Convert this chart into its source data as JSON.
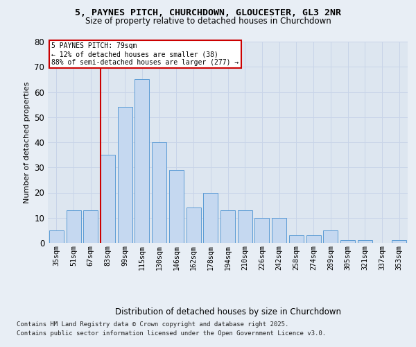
{
  "title_line1": "5, PAYNES PITCH, CHURCHDOWN, GLOUCESTER, GL3 2NR",
  "title_line2": "Size of property relative to detached houses in Churchdown",
  "xlabel": "Distribution of detached houses by size in Churchdown",
  "ylabel": "Number of detached properties",
  "categories": [
    "35sqm",
    "51sqm",
    "67sqm",
    "83sqm",
    "99sqm",
    "115sqm",
    "130sqm",
    "146sqm",
    "162sqm",
    "178sqm",
    "194sqm",
    "210sqm",
    "226sqm",
    "242sqm",
    "258sqm",
    "274sqm",
    "289sqm",
    "305sqm",
    "321sqm",
    "337sqm",
    "353sqm"
  ],
  "values": [
    5,
    13,
    13,
    35,
    54,
    65,
    40,
    29,
    14,
    20,
    13,
    13,
    10,
    10,
    3,
    3,
    5,
    1,
    1,
    0,
    1
  ],
  "bar_color": "#c5d8f0",
  "bar_edge_color": "#5b9bd5",
  "vline_x_index": 3,
  "vline_color": "#cc0000",
  "annotation_title": "5 PAYNES PITCH: 79sqm",
  "annotation_line2": "← 12% of detached houses are smaller (38)",
  "annotation_line3": "88% of semi-detached houses are larger (277) →",
  "annotation_box_color": "#ffffff",
  "annotation_edge_color": "#cc0000",
  "ylim": [
    0,
    80
  ],
  "yticks": [
    0,
    10,
    20,
    30,
    40,
    50,
    60,
    70,
    80
  ],
  "grid_color": "#c8d4e8",
  "background_color": "#dde6f0",
  "fig_background_color": "#e8eef5",
  "footnote_line1": "Contains HM Land Registry data © Crown copyright and database right 2025.",
  "footnote_line2": "Contains public sector information licensed under the Open Government Licence v3.0."
}
